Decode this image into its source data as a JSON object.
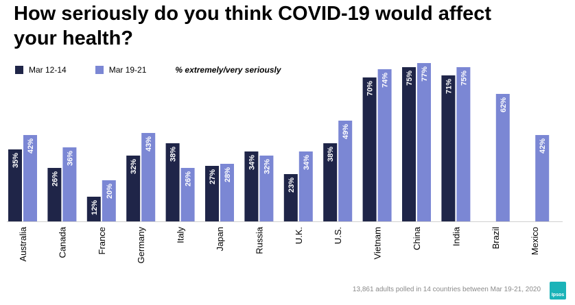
{
  "title": "How seriously do you think COVID-19 would affect your health?",
  "legend": {
    "series1": "Mar 12-14",
    "series2": "Mar 19-21",
    "note": "% extremely/very seriously"
  },
  "colors": {
    "series1": "#1f2548",
    "series2": "#7b87d4",
    "label": "#ffffff",
    "axis": "#cfcfcf"
  },
  "footnote": "13,861 adults polled in 14 countries between Mar 19-21, 2020",
  "logo_text": "Ipsos",
  "chart_data": {
    "type": "bar",
    "title": "How seriously do you think COVID-19 would affect your health?",
    "xlabel": "",
    "ylabel": "% extremely/very seriously",
    "ylim": [
      0,
      80
    ],
    "categories": [
      "Australia",
      "Canada",
      "France",
      "Germany",
      "Italy",
      "Japan",
      "Russia",
      "U.K.",
      "U.S.",
      "Vietnam",
      "China",
      "India",
      "Brazil",
      "Mexico"
    ],
    "series": [
      {
        "name": "Mar 12-14",
        "values": [
          35,
          26,
          12,
          32,
          38,
          27,
          34,
          23,
          38,
          70,
          75,
          71,
          null,
          null
        ]
      },
      {
        "name": "Mar 19-21",
        "values": [
          42,
          36,
          20,
          43,
          26,
          28,
          32,
          34,
          49,
          74,
          77,
          75,
          62,
          42
        ]
      }
    ]
  }
}
